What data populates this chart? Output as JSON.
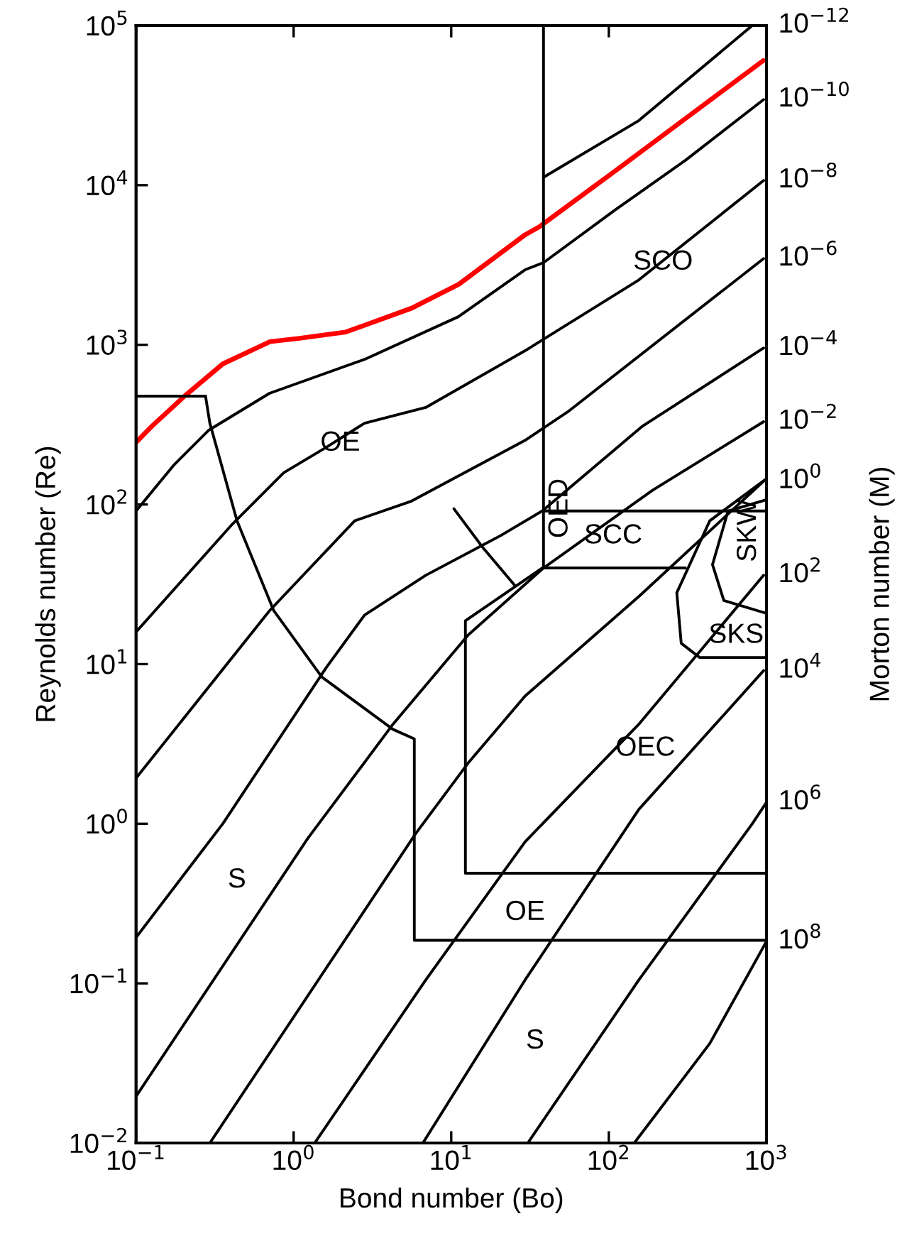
{
  "chart_data": {
    "type": "line",
    "log": "xy",
    "xlabel": "Bond number (Bo)",
    "ylabel": "Reynolds number (Re)",
    "y2label": "Morton number (M)",
    "xlim": [
      0.1,
      1000
    ],
    "ylim": [
      0.01,
      100000
    ],
    "xticks": [
      {
        "value": 0.1,
        "label": "10$^{−1}$"
      },
      {
        "value": 1,
        "label": "10$^{0}$"
      },
      {
        "value": 10,
        "label": "10$^{1}$"
      },
      {
        "value": 100,
        "label": "10$^{2}$"
      },
      {
        "value": 1000,
        "label": "10$^{3}$"
      }
    ],
    "yticks": [
      {
        "value": 0.01,
        "label": "10$^{−2}$"
      },
      {
        "value": 0.1,
        "label": "10$^{−1}$"
      },
      {
        "value": 1,
        "label": "10$^{0}$"
      },
      {
        "value": 10,
        "label": "10$^{1}$"
      },
      {
        "value": 100,
        "label": "10$^{2}$"
      },
      {
        "value": 1000,
        "label": "10$^{3}$"
      },
      {
        "value": 10000,
        "label": "10$^{4}$"
      },
      {
        "value": 100000,
        "label": "10$^{5}$"
      }
    ],
    "series": [
      {
        "color": "#ff0000",
        "x": [
          0.1,
          0.126,
          0.204,
          0.355,
          0.708,
          1.07,
          2.14,
          5.62,
          11.2,
          29.5,
          36.3,
          110,
          309,
          955
        ],
        "values": [
          245,
          309,
          479,
          759,
          1047,
          1096,
          1202,
          1698,
          2399,
          4898,
          5495,
          12300,
          26300,
          60300
        ]
      },
      {
        "name": "10$^{−12}$",
        "color": "#000000",
        "x": [
          38.5,
          155,
          813
        ],
        "values": [
          11200,
          25400,
          100000
        ]
      },
      {
        "name": "10$^{−10}$",
        "color": "#000000",
        "x": [
          0.1,
          0.175,
          0.288,
          0.703,
          2.82,
          11.1,
          29.4,
          38.5,
          109,
          306,
          960
        ],
        "values": [
          91,
          178,
          291,
          497,
          811,
          1500,
          2950,
          3270,
          6970,
          14300,
          34400
        ]
      },
      {
        "name": "10$^{−8}$",
        "color": "#000000",
        "x": [
          0.1,
          0.402,
          0.865,
          1.61,
          2.82,
          6.89,
          29.4,
          155,
          960
        ],
        "values": [
          15.9,
          74,
          158,
          228,
          323,
          405,
          918,
          2550,
          10700
        ]
      },
      {
        "name": "10$^{−6}$",
        "color": "#000000",
        "x": [
          0.1,
          0.703,
          2.44,
          5.6,
          29.4,
          54.8,
          960
        ],
        "values": [
          1.93,
          21.6,
          79,
          105,
          252,
          380,
          3470
        ]
      },
      {
        "name": "10$^{−4}$",
        "color": "#000000",
        "x": [
          0.1,
          0.355,
          1.61,
          2.82,
          6.89,
          20.7,
          37.8,
          164,
          960
        ],
        "values": [
          0.194,
          1.0,
          9.5,
          20.3,
          36,
          64,
          91,
          310,
          955
        ]
      },
      {
        "name": "10$^{−2}$",
        "color": "#000000",
        "x": [
          0.1,
          1.23,
          4.27,
          12.8,
          38.5,
          190,
          960
        ],
        "values": [
          0.0196,
          0.81,
          4.2,
          15.2,
          40,
          123,
          330
        ]
      },
      {
        "name": "10$^{0}$",
        "color": "#000000",
        "x": [
          0.294,
          5.96,
          12.8,
          29.4,
          155,
          960
        ],
        "values": [
          0.01,
          0.87,
          2.4,
          6.3,
          26.5,
          140
        ]
      },
      {
        "name": "10$^{2}$",
        "color": "#000000",
        "x": [
          1.36,
          6.89,
          29.4,
          155,
          960
        ],
        "values": [
          0.01,
          0.105,
          0.77,
          4.2,
          36
        ]
      },
      {
        "name": "10$^{4}$",
        "color": "#000000",
        "x": [
          6.61,
          29.4,
          155,
          960
        ],
        "values": [
          0.01,
          0.105,
          1.23,
          9.1
        ]
      },
      {
        "name": "10$^{6}$",
        "color": "#000000",
        "x": [
          30.6,
          155,
          813,
          1000
        ],
        "values": [
          0.01,
          0.105,
          1.0,
          1.36
        ]
      },
      {
        "name": "10$^{8}$",
        "color": "#000000",
        "x": [
          145,
          437,
          1000
        ],
        "values": [
          0.01,
          0.042,
          0.183
        ]
      },
      {
        "color": "#000000",
        "x": [
          0.1,
          0.276
        ],
        "values": [
          477,
          477
        ]
      },
      {
        "color": "#000000",
        "x": [
          0.276,
          0.294,
          0.437,
          0.748,
          1.51,
          4.27,
          5.83,
          5.83,
          1000
        ],
        "values": [
          477,
          323,
          79,
          21.6,
          8.3,
          3.9,
          3.4,
          0.186,
          0.186
        ]
      },
      {
        "color": "#000000",
        "x": [
          1000,
          12.3,
          12.3,
          37.8
        ],
        "values": [
          0.49,
          0.49,
          18.7,
          40
        ]
      },
      {
        "color": "#000000",
        "x": [
          38.5,
          38.5
        ],
        "values": [
          100000,
          40
        ]
      },
      {
        "color": "#000000",
        "x": [
          38.5,
          1000
        ],
        "values": [
          91,
          91
        ]
      },
      {
        "color": "#000000",
        "x": [
          38.5,
          306
        ],
        "values": [
          40,
          40
        ]
      },
      {
        "color": "#000000",
        "x": [
          10.4,
          15.8,
          25.4
        ],
        "values": [
          94,
          54,
          31
        ]
      },
      {
        "color": "#000000",
        "x": [
          1000,
          571,
          455,
          537,
          1000
        ],
        "values": [
          107,
          91,
          42,
          25,
          20.8
        ]
      },
      {
        "color": "#000000",
        "x": [
          1000,
          437,
          270,
          288,
          377,
          1000
        ],
        "values": [
          145,
          79,
          28,
          13.5,
          11.0,
          11.0
        ]
      }
    ],
    "annotations": [
      "SCO",
      "OE",
      "OED",
      "SCC",
      "SKW",
      "SKS",
      "OEC",
      "S",
      "OE",
      "S"
    ]
  }
}
